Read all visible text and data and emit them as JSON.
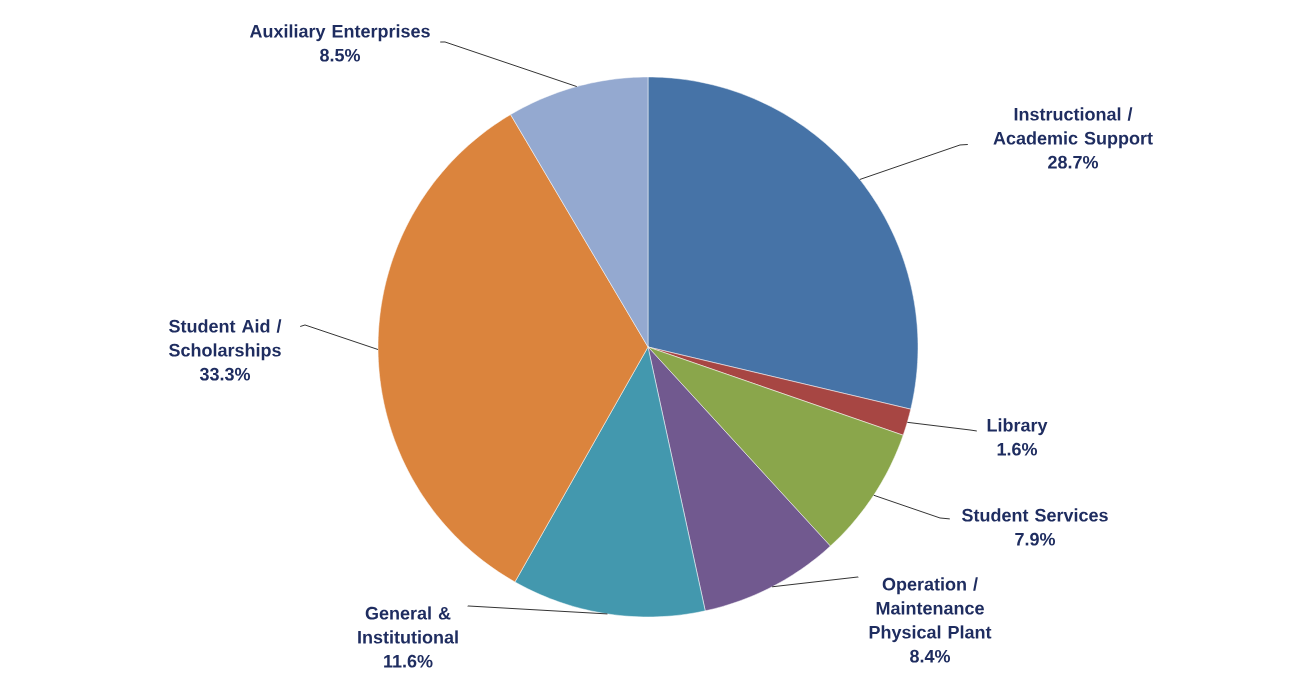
{
  "chart_data": {
    "type": "pie",
    "categories": [
      "Instructional / Academic Support",
      "Library",
      "Student Services",
      "Operation / Maintenance Physical Plant",
      "General & Institutional",
      "Student Aid / Scholarships",
      "Auxiliary Enterprises"
    ],
    "values": [
      28.7,
      1.6,
      7.9,
      8.4,
      11.6,
      33.3,
      8.5
    ],
    "value_labels": [
      "28.7%",
      "1.6%",
      "7.9%",
      "8.4%",
      "11.6%",
      "33.3%",
      "8.5%"
    ],
    "colors": [
      "#4673a7",
      "#a74643",
      "#8aa64b",
      "#71598f",
      "#4398ae",
      "#db843d",
      "#94a9d0"
    ]
  }
}
